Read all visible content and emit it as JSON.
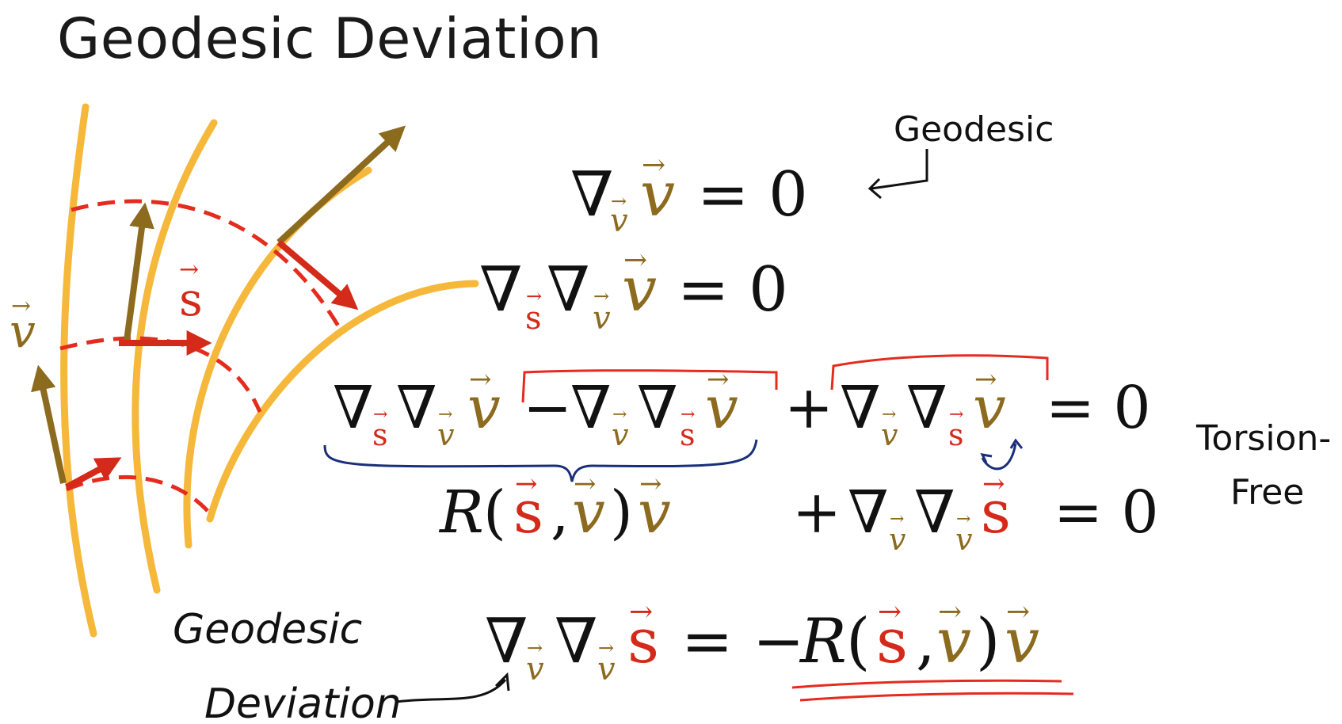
{
  "title": "Geodesic Deviation",
  "colors": {
    "geodesic_curve": "#f5b83a",
    "v_vector": "#8c6a1e",
    "s_vector": "#d42a1a",
    "dashed": "#e52b1e",
    "ink": "#111111",
    "blue_brace": "#1a2e7a",
    "underline": "#e52b1e"
  },
  "labels": {
    "v_symbol": "v",
    "s_symbol": "s",
    "geodesic_note": "Geodesic",
    "torsion_note_line1": "Torsion-",
    "torsion_note_line2": "Free",
    "deviation_note_line1": "Geodesic",
    "deviation_note_line2": "Deviation"
  },
  "math": {
    "nabla": "∇",
    "equals_zero": "= 0",
    "minus": "−",
    "plus": "+",
    "R": "R",
    "open_paren": "(",
    "close_paren": ")",
    "comma": ",",
    "equals_minus": "= −"
  }
}
